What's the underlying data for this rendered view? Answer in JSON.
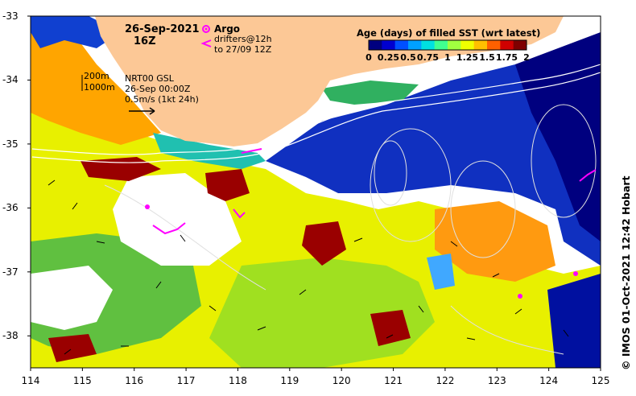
{
  "title": {
    "date": "26-Sep-2021",
    "hour": "16Z"
  },
  "legend": {
    "argo_label": "Argo",
    "argo_color": "#ff00ff",
    "drifters_line1": "drifters@12h",
    "drifters_line2": "to 27/09 12Z"
  },
  "contours": {
    "label_200": "200m",
    "label_1000": "1000m"
  },
  "currents": {
    "line1": "NRT00 GSL",
    "line2": "26-Sep 00:00Z",
    "line3": "0.5m/s (1kt 24h)"
  },
  "colorbar": {
    "title": "Age (days) of filled SST (wrt latest)",
    "ticks": [
      "0",
      "0.25",
      "0.5",
      "0.75",
      "1",
      "1.25",
      "1.5",
      "1.75",
      "2"
    ],
    "colors": [
      "#00007f",
      "#0000d0",
      "#0050ff",
      "#00a0ff",
      "#00e0e0",
      "#40ff90",
      "#a0ff40",
      "#f0ff00",
      "#ffc000",
      "#ff6000",
      "#d00000",
      "#7f0000"
    ]
  },
  "axes": {
    "x_ticks": [
      "114",
      "115",
      "116",
      "117",
      "118",
      "119",
      "120",
      "121",
      "122",
      "123",
      "124",
      "125"
    ],
    "y_ticks": [
      "-33",
      "-34",
      "-35",
      "-36",
      "-37",
      "-38"
    ]
  },
  "map": {
    "lon_range": [
      114,
      125
    ],
    "lat_range": [
      -38.5,
      -33
    ],
    "land_color": "#fcc896",
    "missing_color": "#ffffff"
  },
  "credit": "© IMOS 01-Oct-2021 12:42 Hobart"
}
